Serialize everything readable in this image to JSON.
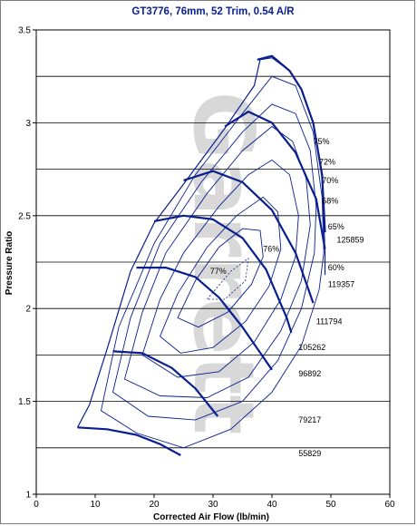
{
  "chart_data": {
    "type": "line",
    "title": "GT3776, 76mm, 52 Trim, 0.54 A/R",
    "xlabel": "Corrected Air Flow (lb/min)",
    "ylabel": "Pressure Ratio",
    "xlim": [
      0,
      60
    ],
    "ylim": [
      1,
      3.5
    ],
    "x_ticks": [
      "0",
      "10",
      "20",
      "30",
      "40",
      "50",
      "60"
    ],
    "y_ticks": [
      "1",
      "1.5",
      "2",
      "2.5",
      "3",
      "3.5"
    ],
    "grid": "horizontal",
    "watermark": "Garrett",
    "surge_line": [
      [
        7,
        1.36
      ],
      [
        9,
        1.48
      ],
      [
        12,
        1.78
      ],
      [
        16,
        2.2
      ],
      [
        20,
        2.46
      ],
      [
        25,
        2.67
      ],
      [
        32,
        2.97
      ],
      [
        37,
        3.2
      ],
      [
        38,
        3.34
      ],
      [
        40,
        3.35
      ],
      [
        43,
        3.28
      ],
      [
        45,
        3.18
      ],
      [
        47,
        3.0
      ],
      [
        48.5,
        2.7
      ],
      [
        49,
        2.3
      ],
      [
        49,
        2.18
      ]
    ],
    "speed_lines": [
      {
        "rpm": "55829",
        "label_x": 44.5,
        "label_y": 1.22,
        "points": [
          [
            7,
            1.36
          ],
          [
            12,
            1.35
          ],
          [
            17,
            1.32
          ],
          [
            21,
            1.27
          ],
          [
            24.5,
            1.21
          ]
        ]
      },
      {
        "rpm": "79217",
        "label_x": 44.5,
        "label_y": 1.4,
        "points": [
          [
            13,
            1.77
          ],
          [
            18,
            1.76
          ],
          [
            23,
            1.68
          ],
          [
            27,
            1.57
          ],
          [
            30.8,
            1.42
          ]
        ]
      },
      {
        "rpm": "96892",
        "label_x": 44.5,
        "label_y": 1.65,
        "points": [
          [
            17,
            2.22
          ],
          [
            22,
            2.22
          ],
          [
            27,
            2.17
          ],
          [
            31,
            2.06
          ],
          [
            35,
            1.9
          ],
          [
            40,
            1.67
          ]
        ]
      },
      {
        "rpm": "105262",
        "label_x": 44.5,
        "label_y": 1.79,
        "points": [
          [
            20,
            2.47
          ],
          [
            25,
            2.5
          ],
          [
            30,
            2.48
          ],
          [
            35,
            2.38
          ],
          [
            39,
            2.21
          ],
          [
            42.5,
            1.95
          ],
          [
            43.3,
            1.87
          ]
        ]
      },
      {
        "rpm": "111794",
        "label_x": 47.5,
        "label_y": 1.93,
        "points": [
          [
            25,
            2.69
          ],
          [
            30,
            2.74
          ],
          [
            35,
            2.68
          ],
          [
            40,
            2.53
          ],
          [
            44,
            2.3
          ],
          [
            47,
            2.03
          ]
        ]
      },
      {
        "rpm": "119357",
        "label_x": 49.5,
        "label_y": 2.13,
        "points": [
          [
            32,
            2.98
          ],
          [
            36,
            3.06
          ],
          [
            40,
            3.0
          ],
          [
            44,
            2.84
          ],
          [
            47.5,
            2.59
          ],
          [
            49,
            2.32
          ]
        ]
      },
      {
        "rpm": "125859",
        "label_x": 51,
        "label_y": 2.37,
        "points": [
          [
            37.5,
            3.34
          ],
          [
            40,
            3.36
          ],
          [
            43,
            3.28
          ],
          [
            45,
            3.18
          ],
          [
            47,
            3.0
          ],
          [
            48.5,
            2.72
          ],
          [
            49,
            2.41
          ]
        ]
      }
    ],
    "efficiency_labels": [
      {
        "text": "77%",
        "x": 29.5,
        "y": 2.2
      },
      {
        "text": "76%",
        "x": 38.5,
        "y": 2.32
      },
      {
        "text": "75%",
        "x": 47,
        "y": 2.9
      },
      {
        "text": "72%",
        "x": 48,
        "y": 2.79
      },
      {
        "text": "70%",
        "x": 48.5,
        "y": 2.69
      },
      {
        "text": "68%",
        "x": 48.5,
        "y": 2.58
      },
      {
        "text": "65%",
        "x": 49.5,
        "y": 2.44
      },
      {
        "text": "60%",
        "x": 49.5,
        "y": 2.22
      }
    ]
  }
}
